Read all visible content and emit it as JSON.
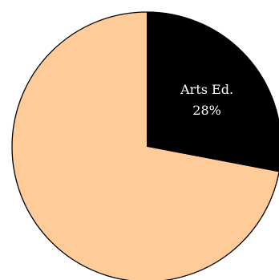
{
  "chart_data": {
    "type": "pie",
    "slices": [
      {
        "label": "Arts Ed.",
        "value": 28,
        "value_label": "28%",
        "color": "#000000",
        "label_color": "#ffffff"
      },
      {
        "label": "",
        "value": 72,
        "value_label": "",
        "color": "#ffcc99",
        "label_color": "#000000"
      }
    ],
    "start": "top",
    "direction": "clockwise",
    "outline_color": "#000000"
  }
}
